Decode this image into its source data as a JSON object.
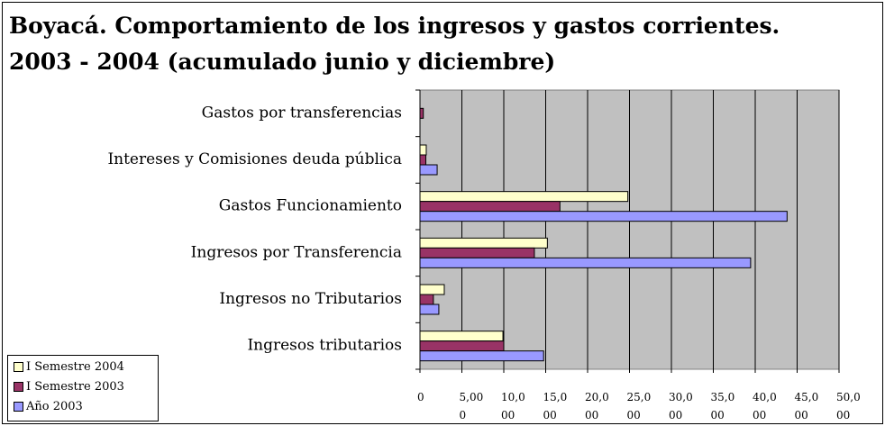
{
  "chart_data": {
    "type": "hbar",
    "title_lines": [
      "Boyacá. Comportamiento de los ingresos y gastos corrientes.",
      "2003 - 2004 (acumulado junio y diciembre)"
    ],
    "categories": [
      "Gastos por transferencias",
      "Intereses y Comisiones deuda pública",
      "Gastos Funcionamiento",
      "Ingresos por Transferencia",
      "Ingresos no Tributarios",
      "Ingresos tributarios"
    ],
    "series": [
      {
        "name": "I Semestre 2004",
        "color": "#ffffcc",
        "values": [
          0,
          750,
          24800,
          15200,
          2900,
          9900
        ]
      },
      {
        "name": "I Semestre 2003",
        "color": "#993366",
        "values": [
          400,
          700,
          16700,
          13650,
          1600,
          10000
        ]
      },
      {
        "name": "Año 2003",
        "color": "#9999ff",
        "values": [
          0,
          2050,
          43800,
          39450,
          2250,
          14750
        ]
      }
    ],
    "xlim": [
      0,
      50000
    ],
    "xticks": [
      0,
      {
        "value": 5000,
        "label": "5,000"
      },
      {
        "value": 10000,
        "label": "10,000"
      },
      {
        "value": 15000,
        "label": "15,000"
      },
      {
        "value": 20000,
        "label": "20,000"
      },
      {
        "value": 25000,
        "label": "25,000"
      },
      {
        "value": 30000,
        "label": "30,000"
      },
      {
        "value": 35000,
        "label": "35,000"
      },
      {
        "value": 40000,
        "label": "40,000"
      },
      {
        "value": 45000,
        "label": "45,000"
      },
      {
        "value": 50000,
        "label": "50,000"
      }
    ],
    "grid": true,
    "legend": "bottom-left"
  }
}
